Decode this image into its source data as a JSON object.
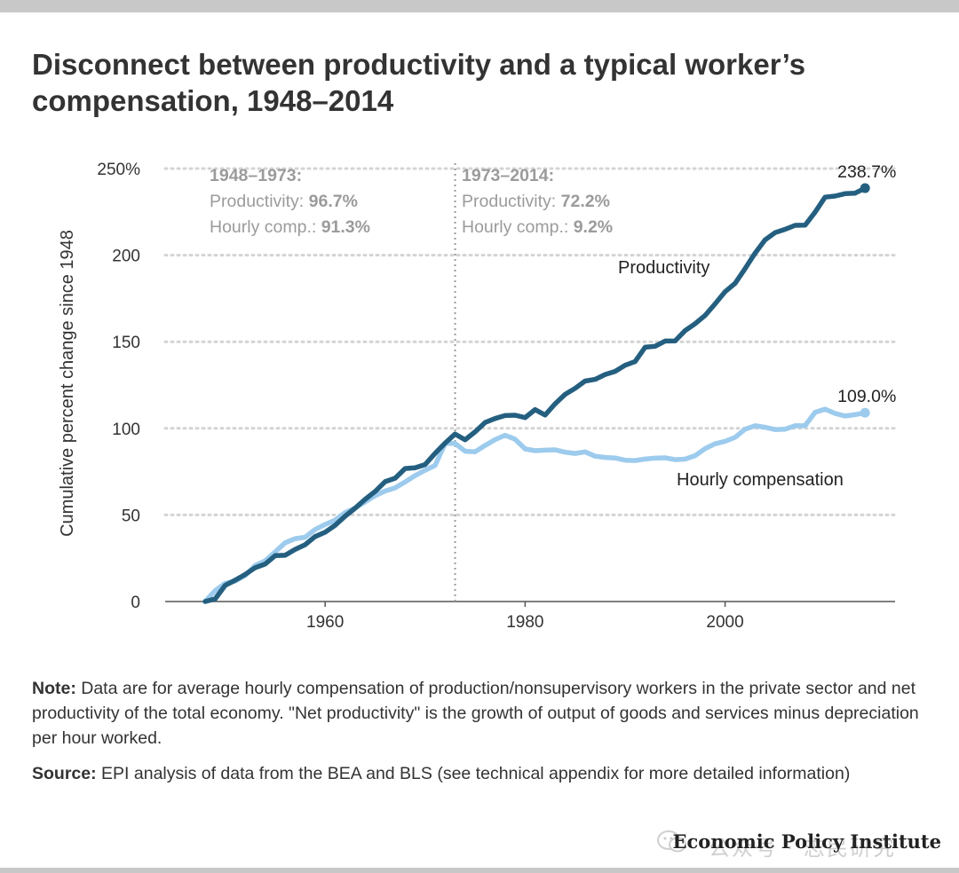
{
  "title": "Disconnect between productivity and a typical worker’s compensation, 1948–2014",
  "note": {
    "label": "Note:",
    "text": " Data are for average hourly compensation of production/nonsupervisory workers in the private sector and net productivity of the total economy. \"Net productivity\" is the growth of output of goods and services minus depreciation per hour worked."
  },
  "source": {
    "label": "Source:",
    "text": " EPI analysis of data from the BEA and BLS (see technical appendix for more detailed information)"
  },
  "footer": {
    "organization": "Economic Policy Institute",
    "watermark_text": "公众号 · 志民研究"
  },
  "colors": {
    "productivity": "#245f80",
    "compensation": "#9ccbed",
    "grid": "#d4d4d4",
    "annotation_gray": "#9b9b9b"
  },
  "chart_data": {
    "type": "line",
    "title": "",
    "xlabel": "",
    "ylabel": "Cumulative percent change since 1948",
    "xlim": [
      1944,
      2017
    ],
    "ylim": [
      0,
      250
    ],
    "xticks": [
      1960,
      1980,
      2000
    ],
    "yticks": [
      {
        "value": 0,
        "label": "0"
      },
      {
        "value": 50,
        "label": "50"
      },
      {
        "value": 100,
        "label": "100"
      },
      {
        "value": 150,
        "label": "150"
      },
      {
        "value": 200,
        "label": "200"
      },
      {
        "value": 250,
        "label": "250%"
      }
    ],
    "grid": "horizontal-dotted",
    "divider_year": 1973,
    "periods": [
      {
        "heading": "1948–1973:",
        "productivity_label": "Productivity: ",
        "productivity_value": "96.7%",
        "comp_label": "Hourly comp.: ",
        "comp_value": "91.3%"
      },
      {
        "heading": "1973–2014:",
        "productivity_label": "Productivity: ",
        "productivity_value": "72.2%",
        "comp_label": "Hourly comp.: ",
        "comp_value": "9.2%"
      }
    ],
    "x": [
      1948,
      1949,
      1950,
      1951,
      1952,
      1953,
      1954,
      1955,
      1956,
      1957,
      1958,
      1959,
      1960,
      1961,
      1962,
      1963,
      1964,
      1965,
      1966,
      1967,
      1968,
      1969,
      1970,
      1971,
      1972,
      1973,
      1974,
      1975,
      1976,
      1977,
      1978,
      1979,
      1980,
      1981,
      1982,
      1983,
      1984,
      1985,
      1986,
      1987,
      1988,
      1989,
      1990,
      1991,
      1992,
      1993,
      1994,
      1995,
      1996,
      1997,
      1998,
      1999,
      2000,
      2001,
      2002,
      2003,
      2004,
      2005,
      2006,
      2007,
      2008,
      2009,
      2010,
      2011,
      2012,
      2013,
      2014
    ],
    "series": [
      {
        "name": "Productivity",
        "end_label": "238.7%",
        "values": [
          0,
          1.5,
          9.3,
          12.3,
          15.6,
          19.5,
          21.6,
          26.5,
          26.7,
          30.1,
          32.8,
          37.5,
          40.0,
          44.0,
          49.3,
          53.9,
          59.0,
          63.6,
          69.2,
          71.2,
          76.8,
          77.2,
          79.1,
          85.6,
          91.5,
          96.7,
          93.4,
          98.0,
          103.4,
          105.7,
          107.4,
          107.6,
          106.2,
          110.8,
          107.7,
          114.2,
          119.6,
          123.1,
          127.3,
          128.3,
          131.1,
          132.9,
          136.4,
          138.5,
          146.8,
          147.4,
          150.4,
          150.5,
          156.4,
          160.4,
          165.2,
          171.9,
          178.9,
          183.7,
          192.2,
          201.2,
          208.8,
          213.0,
          214.9,
          217.2,
          217.3,
          224.8,
          233.5,
          234.1,
          235.5,
          235.8,
          238.7
        ]
      },
      {
        "name": "Hourly compensation",
        "end_label": "109.0%",
        "values": [
          0,
          6.3,
          10.5,
          11.8,
          15.0,
          20.8,
          23.5,
          28.7,
          33.9,
          36.3,
          37.1,
          41.6,
          44.5,
          47.0,
          51.4,
          54.0,
          57.6,
          61.1,
          63.8,
          65.6,
          69.0,
          72.7,
          75.8,
          78.6,
          91.3,
          91.3,
          86.8,
          86.5,
          90.1,
          93.5,
          96.0,
          93.7,
          88.1,
          87.1,
          87.4,
          87.6,
          86.2,
          85.5,
          86.4,
          83.9,
          83.2,
          82.9,
          81.6,
          81.4,
          82.3,
          82.8,
          83.0,
          81.9,
          82.2,
          84.2,
          88.3,
          91.1,
          92.5,
          94.8,
          99.5,
          101.5,
          100.6,
          99.3,
          99.5,
          101.5,
          101.6,
          109.2,
          111.1,
          108.6,
          107.1,
          107.9,
          109.0
        ]
      }
    ]
  }
}
